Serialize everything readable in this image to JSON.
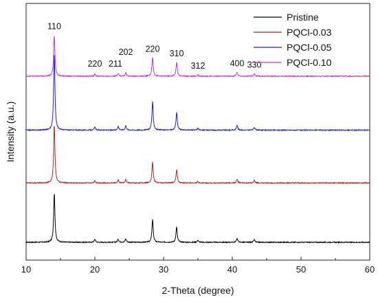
{
  "chart_data": {
    "type": "line",
    "xlabel": "2-Theta (degree)",
    "ylabel": "Intensity (a.u.)",
    "xlim": [
      10,
      60
    ],
    "x_ticks": [
      10,
      20,
      30,
      40,
      50,
      60
    ],
    "y_ticks_shown": false,
    "grid": false,
    "legend_position": "top-right",
    "peak_labels": [
      {
        "label": "110",
        "x": 14.1
      },
      {
        "label": "220",
        "x": 20.0
      },
      {
        "label": "211",
        "x": 23.0
      },
      {
        "label": "202",
        "x": 24.5
      },
      {
        "label": "220",
        "x": 28.4
      },
      {
        "label": "310",
        "x": 31.9
      },
      {
        "label": "312",
        "x": 35.0
      },
      {
        "label": "400",
        "x": 40.7
      },
      {
        "label": "330",
        "x": 43.2
      }
    ],
    "series": [
      {
        "name": "Pristine",
        "color": "#000000",
        "baseline": 0.0,
        "peaks": [
          {
            "x": 14.1,
            "h": 1.0
          },
          {
            "x": 20.0,
            "h": 0.06
          },
          {
            "x": 23.4,
            "h": 0.06
          },
          {
            "x": 24.5,
            "h": 0.07
          },
          {
            "x": 28.4,
            "h": 0.46
          },
          {
            "x": 31.9,
            "h": 0.31
          },
          {
            "x": 35.0,
            "h": 0.04
          },
          {
            "x": 40.7,
            "h": 0.08
          },
          {
            "x": 43.2,
            "h": 0.05
          }
        ]
      },
      {
        "name": "PQCl-0.03",
        "color": "#b22222",
        "baseline": 1.2,
        "peaks": [
          {
            "x": 14.1,
            "h": 1.18
          },
          {
            "x": 20.0,
            "h": 0.05
          },
          {
            "x": 23.4,
            "h": 0.06
          },
          {
            "x": 24.5,
            "h": 0.07
          },
          {
            "x": 28.4,
            "h": 0.42
          },
          {
            "x": 31.9,
            "h": 0.27
          },
          {
            "x": 35.0,
            "h": 0.03
          },
          {
            "x": 40.7,
            "h": 0.07
          },
          {
            "x": 43.2,
            "h": 0.05
          }
        ]
      },
      {
        "name": "PQCl-0.05",
        "color": "#1a1aff",
        "baseline": 2.27,
        "peaks": [
          {
            "x": 14.1,
            "h": 1.55
          },
          {
            "x": 20.0,
            "h": 0.06
          },
          {
            "x": 23.4,
            "h": 0.08
          },
          {
            "x": 24.5,
            "h": 0.09
          },
          {
            "x": 28.4,
            "h": 0.57
          },
          {
            "x": 31.9,
            "h": 0.36
          },
          {
            "x": 35.0,
            "h": 0.04
          },
          {
            "x": 40.7,
            "h": 0.09
          },
          {
            "x": 43.2,
            "h": 0.06
          }
        ]
      },
      {
        "name": "PQCl-0.10",
        "color": "#cc33cc",
        "baseline": 3.36,
        "peaks": [
          {
            "x": 14.1,
            "h": 0.83
          },
          {
            "x": 20.0,
            "h": 0.04
          },
          {
            "x": 23.4,
            "h": 0.06
          },
          {
            "x": 24.5,
            "h": 0.07
          },
          {
            "x": 28.4,
            "h": 0.37
          },
          {
            "x": 31.9,
            "h": 0.28
          },
          {
            "x": 35.0,
            "h": 0.03
          },
          {
            "x": 40.7,
            "h": 0.08
          },
          {
            "x": 43.2,
            "h": 0.05
          }
        ]
      }
    ]
  }
}
